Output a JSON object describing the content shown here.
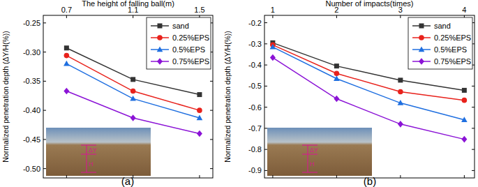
{
  "chart_data": [
    {
      "type": "line",
      "title": "(a)",
      "x_label": "The height of falling ball(m)",
      "y_label": "Normalized penetration depth (ΔY/H(%))",
      "x": [
        0.7,
        1.1,
        1.5
      ],
      "xlim": [
        0.56,
        1.58
      ],
      "xticks": [
        0.7,
        1.1,
        1.5
      ],
      "ylim": [
        -0.516,
        -0.237
      ],
      "yticks": [
        -0.25,
        {
          "value": -0.3,
          "label": "-0.30"
        },
        -0.35,
        {
          "value": -0.4,
          "label": "-0.40"
        },
        -0.45,
        {
          "value": -0.5,
          "label": "-0.50"
        }
      ],
      "grid": false,
      "legend": "upper right",
      "annotations": [
        "ΔY",
        "H"
      ],
      "series": [
        {
          "name": "sand",
          "color": "#333333",
          "marker": "square",
          "values": [
            -0.293,
            -0.347,
            -0.373
          ]
        },
        {
          "name": "0.25%EPS",
          "color": "#e8221c",
          "marker": "circle",
          "values": [
            -0.306,
            -0.367,
            -0.4
          ]
        },
        {
          "name": "0.5%EPS",
          "color": "#1f6fe0",
          "marker": "triangle",
          "values": [
            -0.32,
            -0.38,
            -0.413
          ]
        },
        {
          "name": "0.75%EPS",
          "color": "#8b13d6",
          "marker": "diamond",
          "values": [
            -0.367,
            -0.413,
            -0.44
          ]
        }
      ]
    },
    {
      "type": "line",
      "title": "(b)",
      "x_label": "Number of impacts(times)",
      "y_label": "Normalized penetration depth (ΔY/H(%))",
      "x": [
        1,
        2,
        3,
        4
      ],
      "xlim": [
        0.87,
        4.16
      ],
      "xticks": [
        1,
        2,
        3,
        4
      ],
      "ylim": [
        -0.935,
        -0.165
      ],
      "yticks": [
        -0.2,
        -0.3,
        -0.4,
        -0.5,
        -0.6,
        -0.7,
        -0.8,
        -0.9
      ],
      "grid": false,
      "legend": "upper right",
      "annotations": [
        "ΔY",
        "H"
      ],
      "series": [
        {
          "name": "sand",
          "color": "#333333",
          "marker": "square",
          "values": [
            -0.295,
            -0.405,
            -0.472,
            -0.52
          ]
        },
        {
          "name": "0.25%EPS",
          "color": "#e8221c",
          "marker": "circle",
          "values": [
            -0.305,
            -0.44,
            -0.527,
            -0.567
          ]
        },
        {
          "name": "0.5%EPS",
          "color": "#1f6fe0",
          "marker": "triangle",
          "values": [
            -0.315,
            -0.465,
            -0.58,
            -0.66
          ]
        },
        {
          "name": "0.75%EPS",
          "color": "#8b13d6",
          "marker": "diamond",
          "values": [
            -0.365,
            -0.56,
            -0.68,
            -0.752
          ]
        }
      ]
    }
  ]
}
